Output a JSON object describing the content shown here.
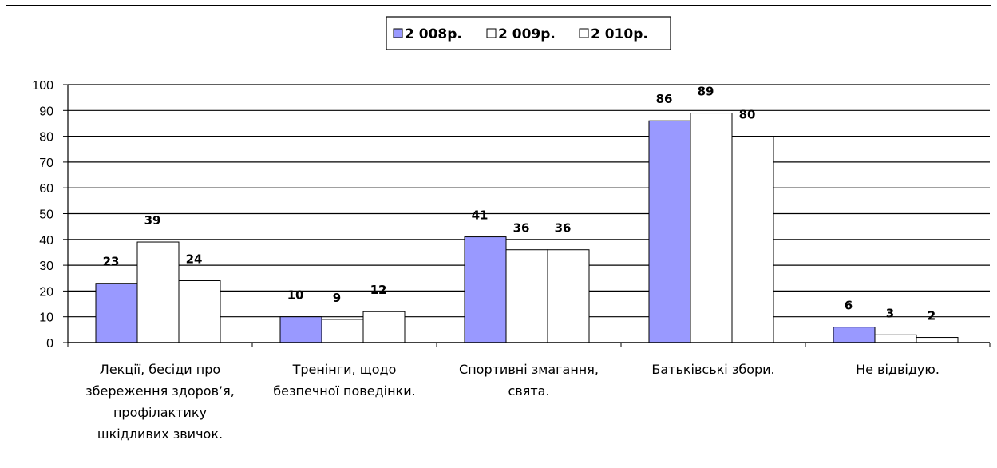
{
  "chart_data": {
    "type": "bar",
    "categories": [
      [
        "Лекції, бесіди про",
        "збереження здоров’я,",
        "профілактику",
        "шкідливих звичок."
      ],
      [
        "Тренінги, щодо",
        "безпечної поведінки."
      ],
      [
        "Спортивні змагання,",
        "свята."
      ],
      [
        "Батьківські збори."
      ],
      [
        "Не відвідую."
      ]
    ],
    "series": [
      {
        "name": "2 008р.",
        "color": "#9999ff",
        "values": [
          23,
          10,
          41,
          86,
          6
        ]
      },
      {
        "name": "2 009р.",
        "color": "#ffffff",
        "values": [
          39,
          9,
          36,
          89,
          3
        ]
      },
      {
        "name": "2 010р.",
        "color": "#ffffff",
        "values": [
          24,
          12,
          36,
          80,
          2
        ]
      }
    ],
    "ylim": [
      0,
      100
    ],
    "yticks": [
      0,
      10,
      20,
      30,
      40,
      50,
      60,
      70,
      80,
      90,
      100
    ],
    "grid": true,
    "legend_position": "top-center",
    "title": "",
    "xlabel": "",
    "ylabel": ""
  }
}
